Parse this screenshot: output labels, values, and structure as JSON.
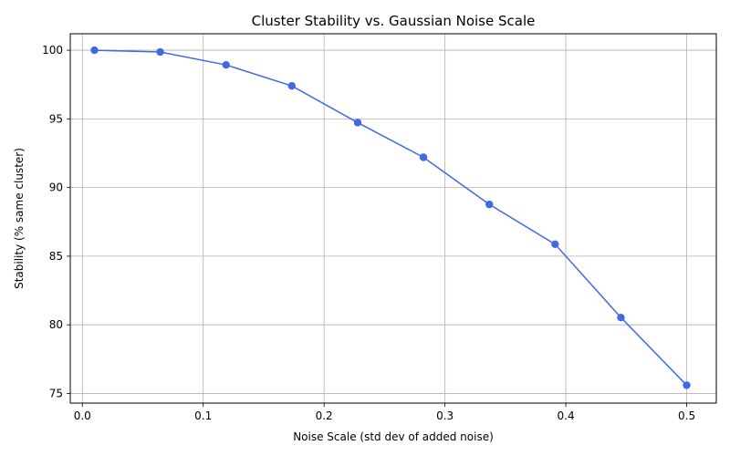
{
  "chart_data": {
    "type": "line",
    "title": "Cluster Stability vs. Gaussian Noise Scale",
    "xlabel": "Noise Scale (std dev of added noise)",
    "ylabel": "Stability (% same cluster)",
    "xlim": [
      -0.01,
      0.5245
    ],
    "ylim": [
      74.3,
      101.2
    ],
    "x_ticks": [
      0.0,
      0.1,
      0.2,
      0.3,
      0.4,
      0.5
    ],
    "x_tick_labels": [
      "0.0",
      "0.1",
      "0.2",
      "0.3",
      "0.4",
      "0.5"
    ],
    "y_ticks": [
      75,
      80,
      85,
      90,
      95,
      100
    ],
    "y_tick_labels": [
      "75",
      "80",
      "85",
      "90",
      "95",
      "100"
    ],
    "grid": true,
    "series": [
      {
        "color": "#4169e1",
        "marker": "circle",
        "x": [
          0.01,
          0.0644,
          0.1189,
          0.1733,
          0.2278,
          0.2822,
          0.3367,
          0.3911,
          0.4456,
          0.5
        ],
        "y": [
          100.0,
          99.87,
          98.93,
          97.4,
          94.73,
          92.2,
          88.77,
          85.87,
          80.53,
          75.6
        ]
      }
    ]
  }
}
